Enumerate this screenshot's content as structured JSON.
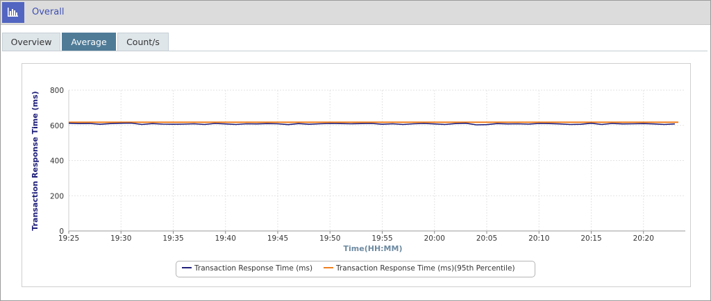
{
  "header": {
    "title": "Overall",
    "icon": "bar-chart-icon"
  },
  "tabs": [
    {
      "label": "Overview",
      "active": false
    },
    {
      "label": "Average",
      "active": true
    },
    {
      "label": "Count/s",
      "active": false
    }
  ],
  "colors": {
    "series_avg": "#1f1f7a",
    "series_p95": "#f07f1e",
    "axis_label": "#1f1f7a",
    "xaxis_label": "#6d8aa0"
  },
  "chart_data": {
    "type": "line",
    "xlabel": "Time(HH:MM)",
    "ylabel": "Transaction Response Time (ms)",
    "ylim": [
      0,
      800
    ],
    "yticks": [
      0,
      200,
      400,
      600,
      800
    ],
    "xlim": [
      "19:25",
      "20:23"
    ],
    "xticks": [
      "19:25",
      "19:30",
      "19:35",
      "19:40",
      "19:45",
      "19:50",
      "19:55",
      "20:00",
      "20:05",
      "20:10",
      "20:15",
      "20:20"
    ],
    "grid": true,
    "legend_position": "bottom",
    "series": [
      {
        "name": "Transaction Response Time (ms)",
        "x": [
          "19:25",
          "19:26",
          "19:27",
          "19:28",
          "19:29",
          "19:30",
          "19:31",
          "19:32",
          "19:33",
          "19:34",
          "19:35",
          "19:36",
          "19:37",
          "19:38",
          "19:39",
          "19:40",
          "19:41",
          "19:42",
          "19:43",
          "19:44",
          "19:45",
          "19:46",
          "19:47",
          "19:48",
          "19:49",
          "19:50",
          "19:51",
          "19:52",
          "19:53",
          "19:54",
          "19:55",
          "19:56",
          "19:57",
          "19:58",
          "19:59",
          "20:00",
          "20:01",
          "20:02",
          "20:03",
          "20:04",
          "20:05",
          "20:06",
          "20:07",
          "20:08",
          "20:09",
          "20:10",
          "20:11",
          "20:12",
          "20:13",
          "20:14",
          "20:15",
          "20:16",
          "20:17",
          "20:18",
          "20:19",
          "20:20",
          "20:21",
          "20:22",
          "20:23"
        ],
        "values": [
          612,
          610,
          611,
          606,
          610,
          612,
          613,
          605,
          610,
          607,
          606,
          607,
          609,
          605,
          611,
          608,
          605,
          609,
          608,
          610,
          609,
          604,
          610,
          606,
          609,
          611,
          610,
          609,
          610,
          611,
          606,
          609,
          605,
          609,
          611,
          608,
          605,
          610,
          612,
          603,
          604,
          610,
          608,
          609,
          607,
          611,
          610,
          608,
          605,
          606,
          612,
          605,
          611,
          608,
          609,
          610,
          608,
          605,
          608
        ]
      },
      {
        "name": "Transaction Response Time (ms)(95th Percentile)",
        "x": [
          "19:25",
          "20:23"
        ],
        "values": [
          618,
          618
        ]
      }
    ]
  }
}
